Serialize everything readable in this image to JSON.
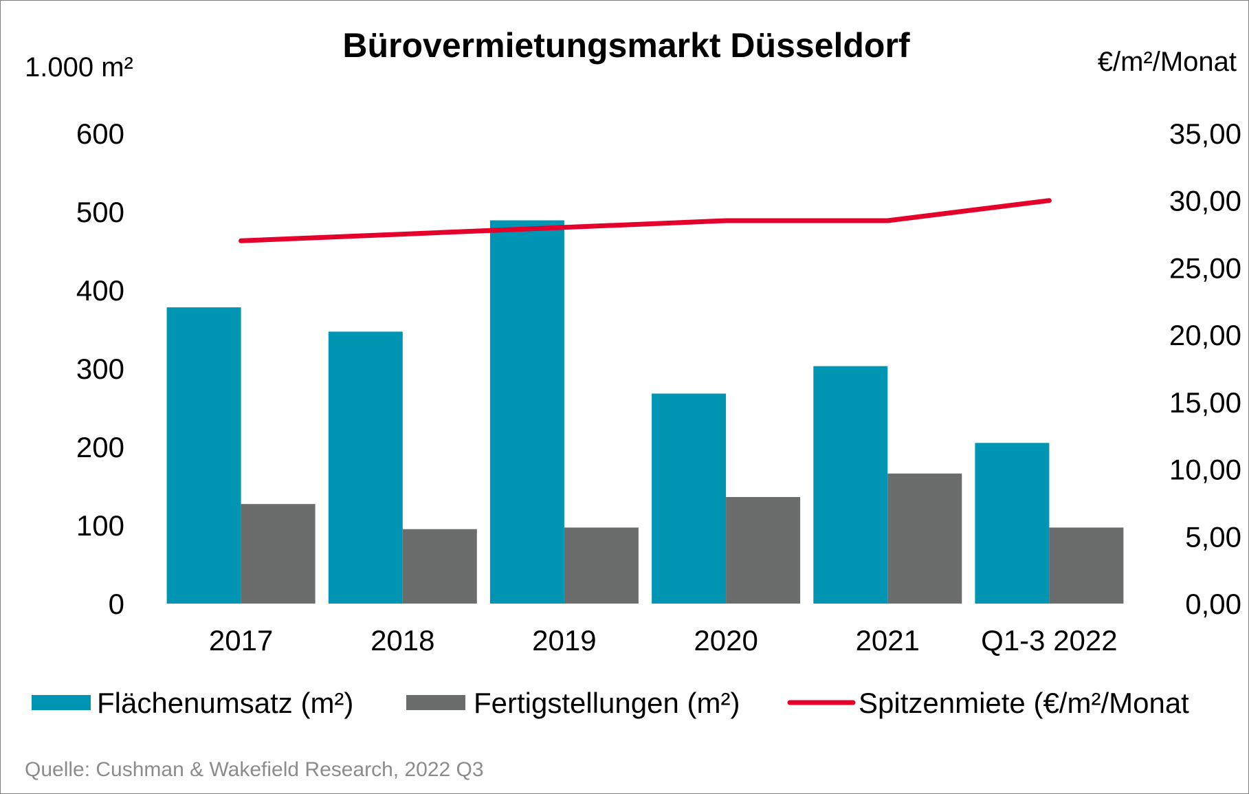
{
  "chart_data": {
    "type": "bar",
    "title": "Bürovermietungsmarkt Düsseldorf",
    "y_left_label": "1.000 m²",
    "y_right_label": "€/m²/Monat",
    "ylim_left": [
      0,
      600
    ],
    "ylim_right": [
      0,
      35
    ],
    "left_ticks": [
      "0",
      "100",
      "200",
      "300",
      "400",
      "500",
      "600"
    ],
    "right_ticks": [
      "0,00",
      "5,00",
      "10,00",
      "15,00",
      "20,00",
      "25,00",
      "30,00",
      "35,00"
    ],
    "categories": [
      "2017",
      "2018",
      "2019",
      "2020",
      "2021",
      "Q1-3 2022"
    ],
    "series": [
      {
        "name": "Flächenumsatz (m²)",
        "type": "bar",
        "axis": "left",
        "color": "#0095b3",
        "values": [
          378,
          347,
          489,
          268,
          303,
          205
        ]
      },
      {
        "name": "Fertigstellungen (m²)",
        "type": "bar",
        "axis": "left",
        "color": "#6b6d6c",
        "values": [
          127,
          95,
          97,
          136,
          166,
          97
        ]
      },
      {
        "name": "Spitzenmiete (€/m²/Monat",
        "type": "line",
        "axis": "right",
        "color": "#e4002b",
        "values": [
          27.0,
          27.5,
          28.0,
          28.5,
          28.5,
          30.0
        ]
      }
    ],
    "grid": false,
    "legend_position": "bottom",
    "source": "Quelle: Cushman & Wakefield Research, 2022 Q3"
  }
}
